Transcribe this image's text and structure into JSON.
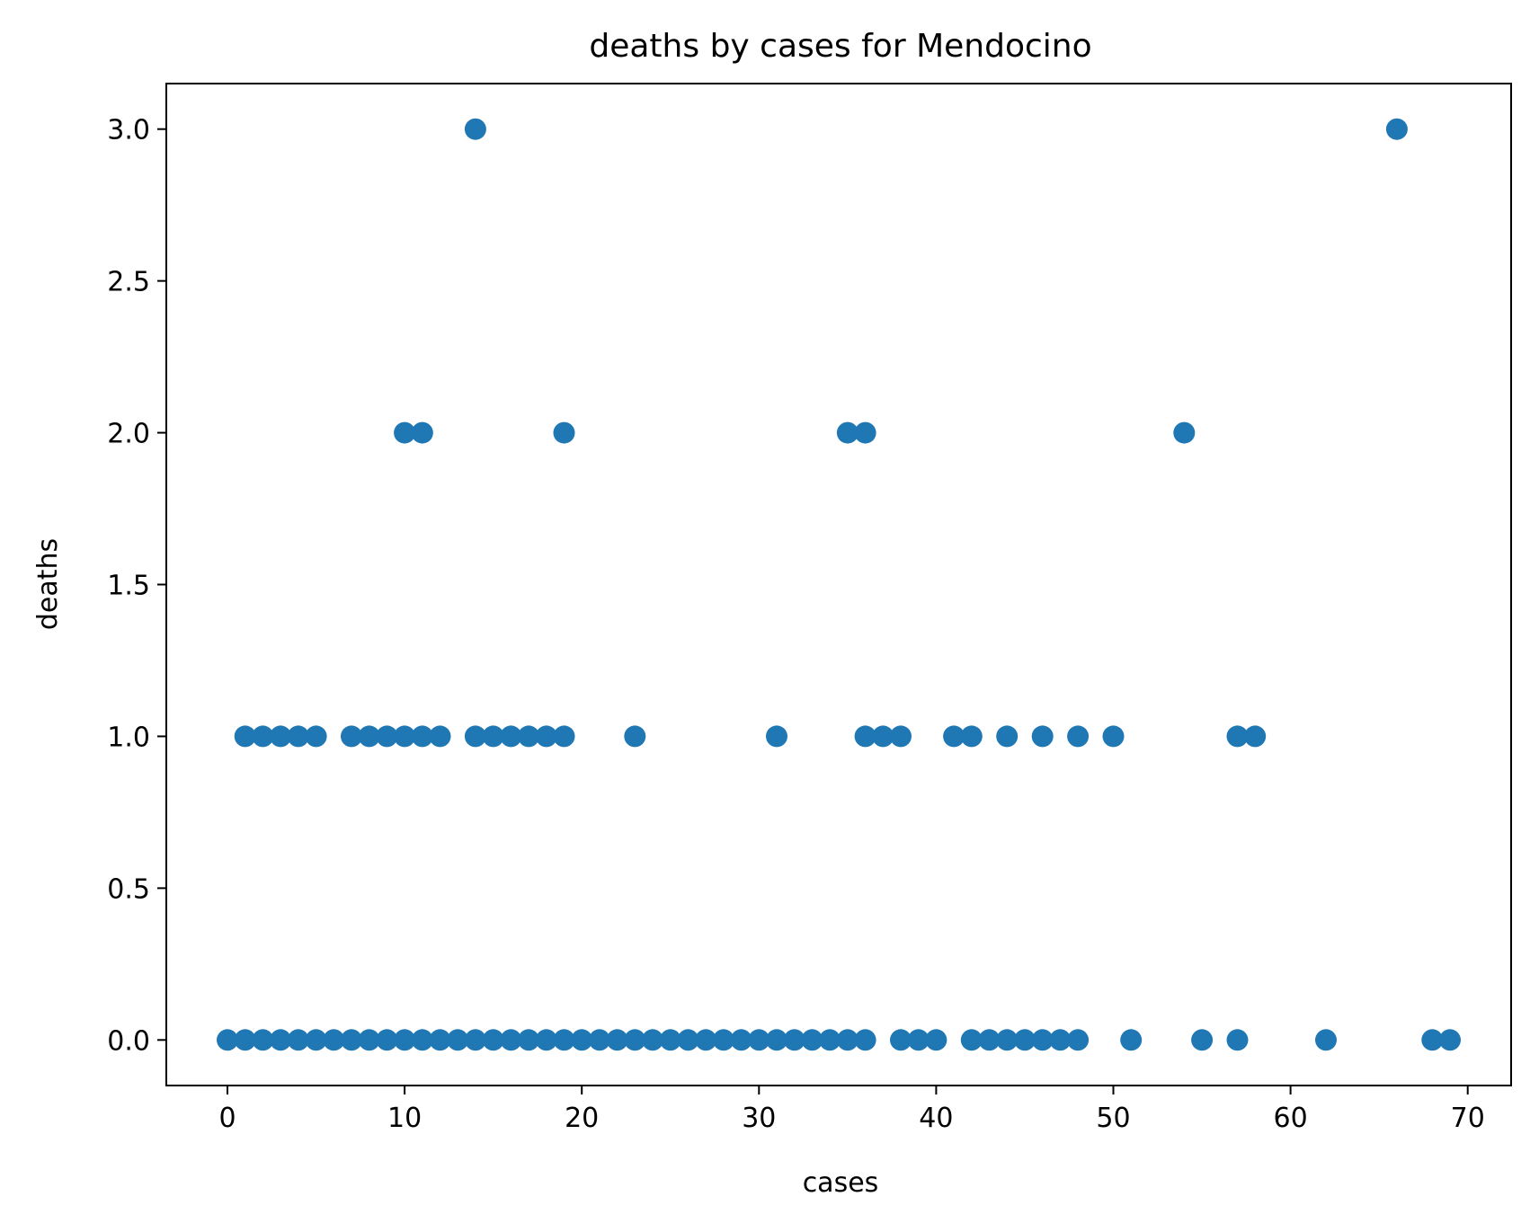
{
  "chart_data": {
    "type": "scatter",
    "title": "deaths by cases for Mendocino",
    "xlabel": "cases",
    "ylabel": "deaths",
    "xlim": [
      -3.45,
      72.45
    ],
    "ylim": [
      -0.15,
      3.15
    ],
    "x_ticks": [
      0,
      10,
      20,
      30,
      40,
      50,
      60,
      70
    ],
    "y_ticks": [
      0.0,
      0.5,
      1.0,
      1.5,
      2.0,
      2.5,
      3.0
    ],
    "x_tick_labels": [
      "0",
      "10",
      "20",
      "30",
      "40",
      "50",
      "60",
      "70"
    ],
    "y_tick_labels": [
      "0.0",
      "0.5",
      "1.0",
      "1.5",
      "2.0",
      "2.5",
      "3.0"
    ],
    "grid": false,
    "legend": false,
    "marker_color": "#1f77b4",
    "points": [
      [
        0,
        0
      ],
      [
        1,
        0
      ],
      [
        2,
        0
      ],
      [
        3,
        0
      ],
      [
        4,
        0
      ],
      [
        5,
        0
      ],
      [
        6,
        0
      ],
      [
        7,
        0
      ],
      [
        8,
        0
      ],
      [
        9,
        0
      ],
      [
        10,
        0
      ],
      [
        11,
        0
      ],
      [
        12,
        0
      ],
      [
        13,
        0
      ],
      [
        14,
        0
      ],
      [
        15,
        0
      ],
      [
        16,
        0
      ],
      [
        17,
        0
      ],
      [
        18,
        0
      ],
      [
        19,
        0
      ],
      [
        20,
        0
      ],
      [
        21,
        0
      ],
      [
        22,
        0
      ],
      [
        23,
        0
      ],
      [
        24,
        0
      ],
      [
        25,
        0
      ],
      [
        26,
        0
      ],
      [
        27,
        0
      ],
      [
        28,
        0
      ],
      [
        29,
        0
      ],
      [
        30,
        0
      ],
      [
        31,
        0
      ],
      [
        32,
        0
      ],
      [
        33,
        0
      ],
      [
        34,
        0
      ],
      [
        35,
        0
      ],
      [
        36,
        0
      ],
      [
        38,
        0
      ],
      [
        39,
        0
      ],
      [
        40,
        0
      ],
      [
        42,
        0
      ],
      [
        43,
        0
      ],
      [
        44,
        0
      ],
      [
        45,
        0
      ],
      [
        46,
        0
      ],
      [
        47,
        0
      ],
      [
        48,
        0
      ],
      [
        51,
        0
      ],
      [
        55,
        0
      ],
      [
        57,
        0
      ],
      [
        62,
        0
      ],
      [
        68,
        0
      ],
      [
        69,
        0
      ],
      [
        1,
        1
      ],
      [
        2,
        1
      ],
      [
        3,
        1
      ],
      [
        4,
        1
      ],
      [
        5,
        1
      ],
      [
        7,
        1
      ],
      [
        8,
        1
      ],
      [
        9,
        1
      ],
      [
        10,
        1
      ],
      [
        11,
        1
      ],
      [
        12,
        1
      ],
      [
        14,
        1
      ],
      [
        15,
        1
      ],
      [
        16,
        1
      ],
      [
        17,
        1
      ],
      [
        18,
        1
      ],
      [
        19,
        1
      ],
      [
        23,
        1
      ],
      [
        31,
        1
      ],
      [
        36,
        1
      ],
      [
        37,
        1
      ],
      [
        38,
        1
      ],
      [
        41,
        1
      ],
      [
        42,
        1
      ],
      [
        44,
        1
      ],
      [
        46,
        1
      ],
      [
        48,
        1
      ],
      [
        50,
        1
      ],
      [
        57,
        1
      ],
      [
        58,
        1
      ],
      [
        10,
        2
      ],
      [
        11,
        2
      ],
      [
        19,
        2
      ],
      [
        35,
        2
      ],
      [
        36,
        2
      ],
      [
        54,
        2
      ],
      [
        14,
        3
      ],
      [
        66,
        3
      ]
    ]
  }
}
